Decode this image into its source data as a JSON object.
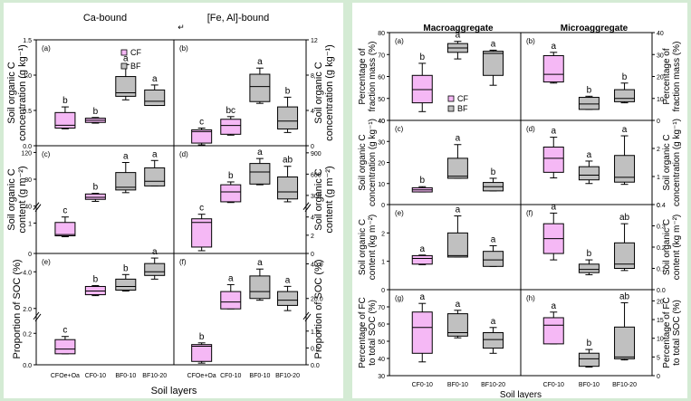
{
  "chart_data": [
    {
      "type": "box",
      "figure": "left",
      "column_titles": [
        "Ca-bound",
        "[Fe, Al]-bound"
      ],
      "xlabel": "Soil layers",
      "categories": [
        "CFOe+Oa",
        "CF0-10",
        "BF0-10",
        "BF10-20"
      ],
      "category_groups": [
        "CF",
        "CF",
        "BF",
        "BF"
      ],
      "legend": {
        "entries": [
          "CF",
          "BF"
        ],
        "colors": [
          "#f5b8f5",
          "#c0c0c0"
        ],
        "placement": "top-right of panel (a)"
      },
      "rows": [
        {
          "ylabel": "Soil organic C concentration (g kg⁻¹)"
        },
        {
          "ylabel": "Soil organic C content (g m⁻²)"
        },
        {
          "ylabel": "Proportion of SOC (%)"
        }
      ],
      "panels": [
        {
          "id": "(a)",
          "column": 0,
          "row": 0,
          "ylim": [
            0,
            1.5
          ],
          "yticks": [
            "0.0",
            "0.5",
            "1.0",
            "1.5"
          ],
          "boxes": [
            {
              "cat": "CFOe+Oa",
              "min": 0.24,
              "q1": 0.25,
              "median": 0.29,
              "q3": 0.47,
              "max": 0.55,
              "letter": "b"
            },
            {
              "cat": "CF0-10",
              "min": 0.32,
              "q1": 0.33,
              "median": 0.36,
              "q3": 0.39,
              "max": 0.4,
              "letter": "b"
            },
            {
              "cat": "BF0-10",
              "min": 0.65,
              "q1": 0.7,
              "median": 0.75,
              "q3": 0.98,
              "max": 1.15,
              "letter": "a"
            },
            {
              "cat": "BF10-20",
              "min": 0.57,
              "q1": 0.57,
              "median": 0.63,
              "q3": 0.79,
              "max": 0.86,
              "letter": "a"
            }
          ]
        },
        {
          "id": "(b)",
          "column": 1,
          "row": 0,
          "ylim": [
            0,
            12
          ],
          "yticks": [
            "0",
            "4",
            "8",
            "12"
          ],
          "boxes": [
            {
              "cat": "CFOe+Oa",
              "min": 0.1,
              "q1": 0.3,
              "median": 1.6,
              "q3": 1.8,
              "max": 2.0,
              "letter": "c"
            },
            {
              "cat": "CF0-10",
              "min": 1.2,
              "q1": 1.3,
              "median": 2.3,
              "q3": 3.0,
              "max": 3.3,
              "letter": "bc"
            },
            {
              "cat": "BF0-10",
              "min": 4.8,
              "q1": 5.0,
              "median": 6.7,
              "q3": 8.1,
              "max": 8.8,
              "letter": "a"
            },
            {
              "cat": "BF10-20",
              "min": 1.5,
              "q1": 1.9,
              "median": 2.8,
              "q3": 4.4,
              "max": 5.5,
              "letter": "b"
            }
          ]
        },
        {
          "id": "(c)",
          "column": 0,
          "row": 1,
          "broken_axis": true,
          "lower_ylim": [
            0,
            1.5
          ],
          "upper_ylim": [
            40,
            130
          ],
          "yticks_lower": [
            "0",
            "1"
          ],
          "yticks_upper": [
            "40",
            "80",
            "120"
          ],
          "boxes": [
            {
              "cat": "CFOe+Oa",
              "min": 0.55,
              "q1": 0.58,
              "median": 0.62,
              "q3": 1.02,
              "max": 1.2,
              "letter": "c",
              "axis": "lower"
            },
            {
              "cat": "CF0-10",
              "min": 47,
              "q1": 50,
              "median": 53,
              "q3": 58,
              "max": 59,
              "letter": "b",
              "axis": "upper"
            },
            {
              "cat": "BF0-10",
              "min": 60,
              "q1": 64,
              "median": 68,
              "q3": 90,
              "max": 105,
              "letter": "a",
              "axis": "upper"
            },
            {
              "cat": "BF10-20",
              "min": 70,
              "q1": 70,
              "median": 77,
              "q3": 97,
              "max": 108,
              "letter": "a",
              "axis": "upper"
            }
          ]
        },
        {
          "id": "(d)",
          "column": 1,
          "row": 1,
          "broken_axis": true,
          "lower_ylim": [
            0,
            5
          ],
          "upper_ylim": [
            150,
            1000
          ],
          "yticks_lower": [
            "0",
            "2",
            "4"
          ],
          "yticks_upper": [
            "300",
            "600",
            "900"
          ],
          "boxes": [
            {
              "cat": "CFOe+Oa",
              "min": 0.3,
              "q1": 0.7,
              "median": 3.4,
              "q3": 3.8,
              "max": 4.3,
              "letter": "c",
              "axis": "lower"
            },
            {
              "cat": "CF0-10",
              "min": 200,
              "q1": 210,
              "median": 350,
              "q3": 450,
              "max": 490,
              "letter": "b",
              "axis": "upper"
            },
            {
              "cat": "BF0-10",
              "min": 450,
              "q1": 460,
              "median": 630,
              "q3": 750,
              "max": 820,
              "letter": "a",
              "axis": "upper"
            },
            {
              "cat": "BF10-20",
              "min": 210,
              "q1": 250,
              "median": 350,
              "q3": 560,
              "max": 710,
              "letter": "ab",
              "axis": "upper"
            }
          ]
        },
        {
          "id": "(e)",
          "column": 0,
          "row": 2,
          "broken_axis": true,
          "lower_ylim": [
            0,
            0.3
          ],
          "upper_ylim": [
            1.6,
            5.0
          ],
          "yticks_lower": [
            "0.0",
            "0.2"
          ],
          "yticks_upper": [
            "2.0",
            "4.0"
          ],
          "boxes": [
            {
              "cat": "CFOe+Oa",
              "min": 0.07,
              "q1": 0.07,
              "median": 0.1,
              "q3": 0.16,
              "max": 0.18,
              "letter": "c",
              "axis": "lower"
            },
            {
              "cat": "CF0-10",
              "min": 2.7,
              "q1": 2.75,
              "median": 2.95,
              "q3": 3.2,
              "max": 3.25,
              "letter": "b",
              "axis": "upper"
            },
            {
              "cat": "BF0-10",
              "min": 2.95,
              "q1": 3.0,
              "median": 3.2,
              "q3": 3.6,
              "max": 3.85,
              "letter": "b",
              "axis": "upper"
            },
            {
              "cat": "BF10-20",
              "min": 3.6,
              "q1": 3.8,
              "median": 4.0,
              "q3": 4.45,
              "max": 4.75,
              "letter": "a",
              "axis": "upper"
            }
          ]
        },
        {
          "id": "(f)",
          "column": 1,
          "row": 2,
          "broken_axis": true,
          "lower_ylim": [
            0,
            1.4
          ],
          "upper_ylim": [
            10,
            46
          ],
          "yticks_lower": [
            "0.0",
            "0.5",
            "1.0"
          ],
          "yticks_upper": [
            "20.0",
            "40.0"
          ],
          "boxes": [
            {
              "cat": "CFOe+Oa",
              "min": 0.05,
              "q1": 0.1,
              "median": 0.55,
              "q3": 0.6,
              "max": 0.65,
              "letter": "b",
              "axis": "lower"
            },
            {
              "cat": "CF0-10",
              "min": 14,
              "q1": 14,
              "median": 18,
              "q3": 24,
              "max": 28,
              "letter": "a",
              "axis": "upper"
            },
            {
              "cat": "BF0-10",
              "min": 19,
              "q1": 20,
              "median": 24,
              "q3": 33,
              "max": 37,
              "letter": "a",
              "axis": "upper"
            },
            {
              "cat": "BF10-20",
              "min": 13,
              "q1": 16,
              "median": 19,
              "q3": 24,
              "max": 27,
              "letter": "a",
              "axis": "upper"
            }
          ]
        }
      ]
    },
    {
      "type": "box",
      "figure": "right",
      "column_titles": [
        "Macroaggregate",
        "Microaggregate"
      ],
      "xlabel": "Soil layers",
      "categories": [
        "CF0-10",
        "BF0-10",
        "BF10-20"
      ],
      "category_groups": [
        "CF",
        "BF",
        "BF"
      ],
      "legend": {
        "entries": [
          "CF",
          "BF"
        ],
        "colors": [
          "#f5b8f5",
          "#c0c0c0"
        ],
        "placement": "bottom-right of panel (a)"
      },
      "rows": [
        {
          "ylabel": "Percentage of fraction mass (%)"
        },
        {
          "ylabel": "Soil organic C concentration (g kg⁻¹)"
        },
        {
          "ylabel": "Soil organic C content (kg m⁻²)"
        },
        {
          "ylabel": "Percentage of FC to total SOC (%)"
        }
      ],
      "panels": [
        {
          "id": "(a)",
          "column": 0,
          "row": 0,
          "ylim": [
            40,
            80
          ],
          "yticks": [
            "40",
            "50",
            "60",
            "70",
            "80"
          ],
          "boxes": [
            {
              "cat": "CF0-10",
              "min": 44,
              "q1": 48,
              "median": 54,
              "q3": 60.5,
              "max": 66,
              "letter": "b"
            },
            {
              "cat": "BF0-10",
              "min": 68,
              "q1": 71,
              "median": 73,
              "q3": 75,
              "max": 76,
              "letter": "a"
            },
            {
              "cat": "BF10-20",
              "min": 56,
              "q1": 60.5,
              "median": 70.5,
              "q3": 71.5,
              "max": 72,
              "letter": "a"
            }
          ]
        },
        {
          "id": "(b)",
          "column": 1,
          "row": 0,
          "ylim": [
            0,
            40
          ],
          "yticks": [
            "0",
            "10",
            "20",
            "30",
            "40"
          ],
          "boxes": [
            {
              "cat": "CF0-10",
              "min": 17,
              "q1": 17.5,
              "median": 21,
              "q3": 29.5,
              "max": 31,
              "letter": "a"
            },
            {
              "cat": "BF0-10",
              "min": 5,
              "q1": 5,
              "median": 7.5,
              "q3": 10.5,
              "max": 11,
              "letter": "b"
            },
            {
              "cat": "BF10-20",
              "min": 8,
              "q1": 8.5,
              "median": 10,
              "q3": 14,
              "max": 17,
              "letter": "b"
            }
          ]
        },
        {
          "id": "(c)",
          "column": 0,
          "row": 1,
          "ylim": [
            0,
            40
          ],
          "yticks": [
            "0",
            "10",
            "20",
            "30",
            "40"
          ],
          "boxes": [
            {
              "cat": "CF0-10",
              "min": 6,
              "q1": 6,
              "median": 7,
              "q3": 8,
              "max": 8.5,
              "letter": "b"
            },
            {
              "cat": "BF0-10",
              "min": 12.5,
              "q1": 12.5,
              "median": 13.5,
              "q3": 22,
              "max": 28.5,
              "letter": "a"
            },
            {
              "cat": "BF10-20",
              "min": 6.5,
              "q1": 6.5,
              "median": 8.5,
              "q3": 10.5,
              "max": 12.5,
              "letter": "b"
            }
          ]
        },
        {
          "id": "(d)",
          "column": 1,
          "row": 1,
          "ylim": [
            0,
            3
          ],
          "yticks": [
            "0",
            "1",
            "2"
          ],
          "boxes": [
            {
              "cat": "CF0-10",
              "min": 0.95,
              "q1": 1.15,
              "median": 1.65,
              "q3": 2.05,
              "max": 2.4,
              "letter": "a"
            },
            {
              "cat": "BF0-10",
              "min": 0.75,
              "q1": 0.88,
              "median": 1.05,
              "q3": 1.35,
              "max": 1.55,
              "letter": "a"
            },
            {
              "cat": "BF10-20",
              "min": 0.72,
              "q1": 0.8,
              "median": 0.97,
              "q3": 1.75,
              "max": 2.45,
              "letter": "a"
            }
          ]
        },
        {
          "id": "(e)",
          "column": 0,
          "row": 2,
          "ylim": [
            0,
            3
          ],
          "yticks": [
            "0",
            "1",
            "2"
          ],
          "boxes": [
            {
              "cat": "CF0-10",
              "min": 0.88,
              "q1": 0.9,
              "median": 1.1,
              "q3": 1.2,
              "max": 1.22,
              "letter": "a"
            },
            {
              "cat": "BF0-10",
              "min": 1.15,
              "q1": 1.15,
              "median": 1.2,
              "q3": 2.0,
              "max": 2.6,
              "letter": "a"
            },
            {
              "cat": "BF10-20",
              "min": 0.82,
              "q1": 0.82,
              "median": 1.05,
              "q3": 1.35,
              "max": 1.55,
              "letter": "a"
            }
          ]
        },
        {
          "id": "(f)",
          "column": 1,
          "row": 2,
          "ylim": [
            0,
            0.4
          ],
          "yticks": [
            "0.0",
            "0.1",
            "0.2",
            "0.3",
            "0.4"
          ],
          "boxes": [
            {
              "cat": "CF0-10",
              "min": 0.14,
              "q1": 0.17,
              "median": 0.24,
              "q3": 0.31,
              "max": 0.36,
              "letter": "a"
            },
            {
              "cat": "BF0-10",
              "min": 0.07,
              "q1": 0.08,
              "median": 0.095,
              "q3": 0.12,
              "max": 0.14,
              "letter": "b"
            },
            {
              "cat": "BF10-20",
              "min": 0.09,
              "q1": 0.1,
              "median": 0.12,
              "q3": 0.22,
              "max": 0.31,
              "letter": "ab"
            }
          ]
        },
        {
          "id": "(g)",
          "column": 0,
          "row": 3,
          "ylim": [
            30,
            80
          ],
          "yticks": [
            "30",
            "40",
            "50",
            "60",
            "70"
          ],
          "boxes": [
            {
              "cat": "CF0-10",
              "min": 38,
              "q1": 43,
              "median": 58,
              "q3": 67,
              "max": 72,
              "letter": "a"
            },
            {
              "cat": "BF0-10",
              "min": 52,
              "q1": 53,
              "median": 55,
              "q3": 66,
              "max": 68,
              "letter": "a"
            },
            {
              "cat": "BF10-20",
              "min": 43,
              "q1": 46,
              "median": 51,
              "q3": 55,
              "max": 58,
              "letter": "a"
            }
          ]
        },
        {
          "id": "(h)",
          "column": 1,
          "row": 3,
          "ylim": [
            0,
            23
          ],
          "yticks": [
            "0",
            "5",
            "10",
            "15",
            "20"
          ],
          "boxes": [
            {
              "cat": "CF0-10",
              "min": 8.5,
              "q1": 8.5,
              "median": 13.5,
              "q3": 15.5,
              "max": 17,
              "letter": "a"
            },
            {
              "cat": "BF0-10",
              "min": 2.3,
              "q1": 2.5,
              "median": 4.5,
              "q3": 6,
              "max": 7,
              "letter": "b"
            },
            {
              "cat": "BF10-20",
              "min": 4.2,
              "q1": 4.5,
              "median": 5,
              "q3": 13,
              "max": 19.5,
              "letter": "ab"
            }
          ]
        }
      ]
    }
  ]
}
